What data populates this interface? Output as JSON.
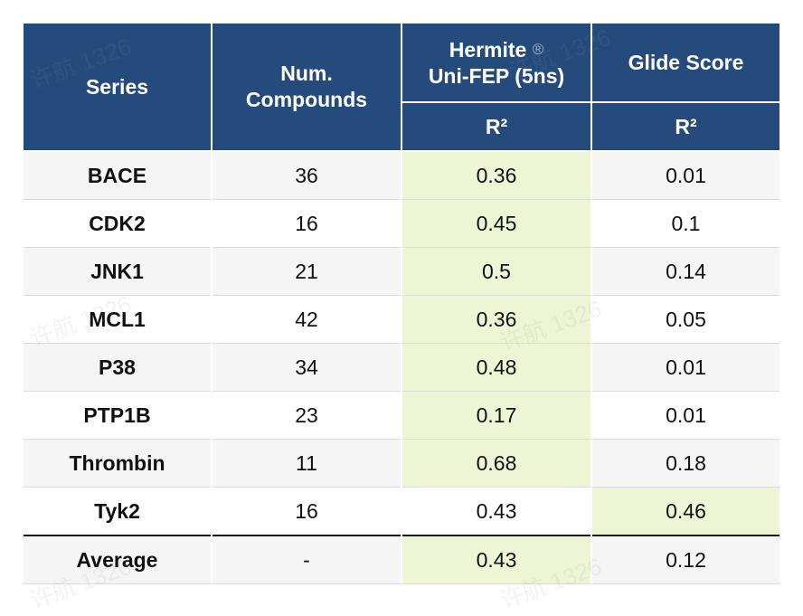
{
  "header": {
    "series": "Series",
    "compounds_line1": "Num.",
    "compounds_line2": "Compounds",
    "hermite_line1": "Hermite",
    "hermite_mark": "®",
    "hermite_line2": "Uni-FEP (5ns)",
    "glide": "Glide Score",
    "r2_hermite": "R²",
    "r2_glide": "R²"
  },
  "rows": [
    {
      "series": "BACE",
      "compounds": "36",
      "hermite": "0.36",
      "glide": "0.01"
    },
    {
      "series": "CDK2",
      "compounds": "16",
      "hermite": "0.45",
      "glide": "0.1"
    },
    {
      "series": "JNK1",
      "compounds": "21",
      "hermite": "0.5",
      "glide": "0.14"
    },
    {
      "series": "MCL1",
      "compounds": "42",
      "hermite": "0.36",
      "glide": "0.05"
    },
    {
      "series": "P38",
      "compounds": "34",
      "hermite": "0.48",
      "glide": "0.01"
    },
    {
      "series": "PTP1B",
      "compounds": "23",
      "hermite": "0.17",
      "glide": "0.01"
    },
    {
      "series": "Thrombin",
      "compounds": "11",
      "hermite": "0.68",
      "glide": "0.18"
    },
    {
      "series": "Tyk2",
      "compounds": "16",
      "hermite": "0.43",
      "glide": "0.46"
    }
  ],
  "average": {
    "series": "Average",
    "compounds": "-",
    "hermite": "0.43",
    "glide": "0.12"
  },
  "watermark": "许航 1326",
  "colors": {
    "header_bg": "#254b7d",
    "highlight": "#eef5d4",
    "row_alt": "#f5f5f5"
  }
}
